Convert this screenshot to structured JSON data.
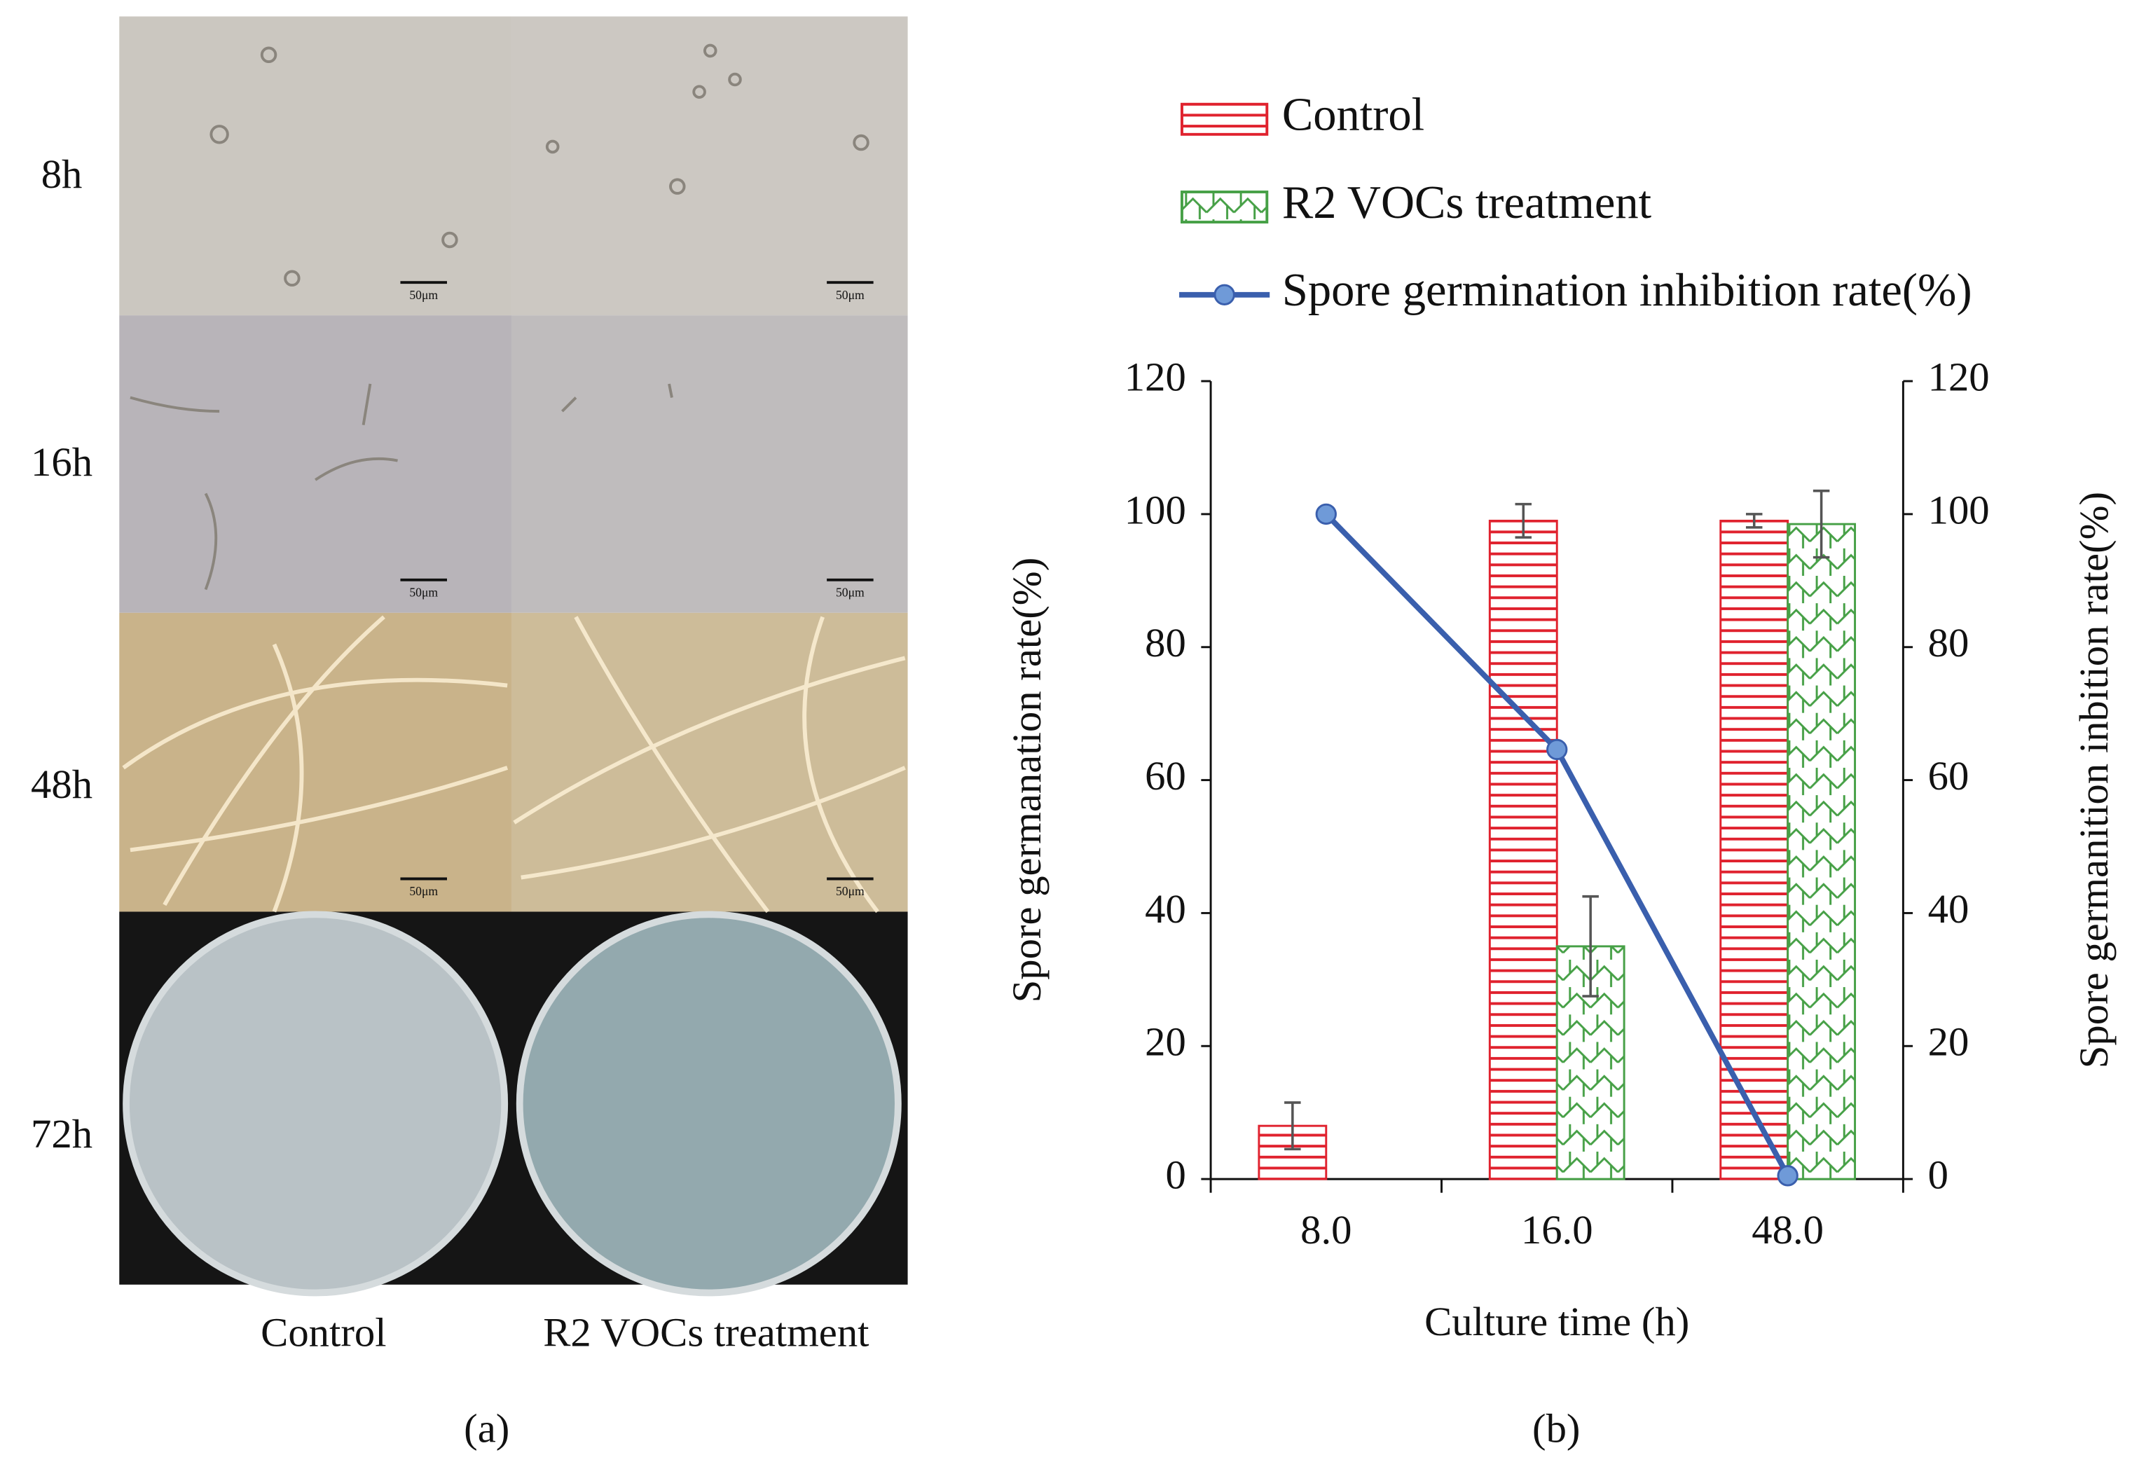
{
  "panel_a": {
    "row_labels": [
      "8h",
      "16h",
      "48h",
      "72h"
    ],
    "column_labels": [
      "Control",
      "R2 VOCs treatment"
    ],
    "scale_bar": "50μm",
    "label": "(a)"
  },
  "panel_b": {
    "label": "(b)"
  },
  "chart_data": {
    "type": "bar",
    "categories": [
      "8.0",
      "16.0",
      "48.0"
    ],
    "x_label": "Culture time (h)",
    "y_label": "Spore germanation rate(%)",
    "y2_label": "Spore germanition inbition rate(%)",
    "series": [
      {
        "name": "Control",
        "color": "#e0222e",
        "type": "bar",
        "values": [
          8,
          99,
          99
        ],
        "errors": [
          3.5,
          2.5,
          1
        ]
      },
      {
        "name": "R2 VOCs treatment",
        "color": "#46a046",
        "type": "bar",
        "values": [
          0,
          35,
          98.5
        ],
        "errors": [
          null,
          7.5,
          5
        ]
      },
      {
        "name": "Spore germination inhibition rate(%)",
        "color": "#3a5fad",
        "type": "line",
        "axis": "y2",
        "values": [
          100,
          64.6,
          0.5
        ]
      }
    ],
    "ylim": [
      0,
      120
    ],
    "yticks": [
      0,
      20,
      40,
      60,
      80,
      100,
      120
    ],
    "y2lim": [
      0,
      120
    ],
    "y2ticks": [
      0,
      20,
      40,
      60,
      80,
      100,
      120
    ],
    "grid": false
  }
}
